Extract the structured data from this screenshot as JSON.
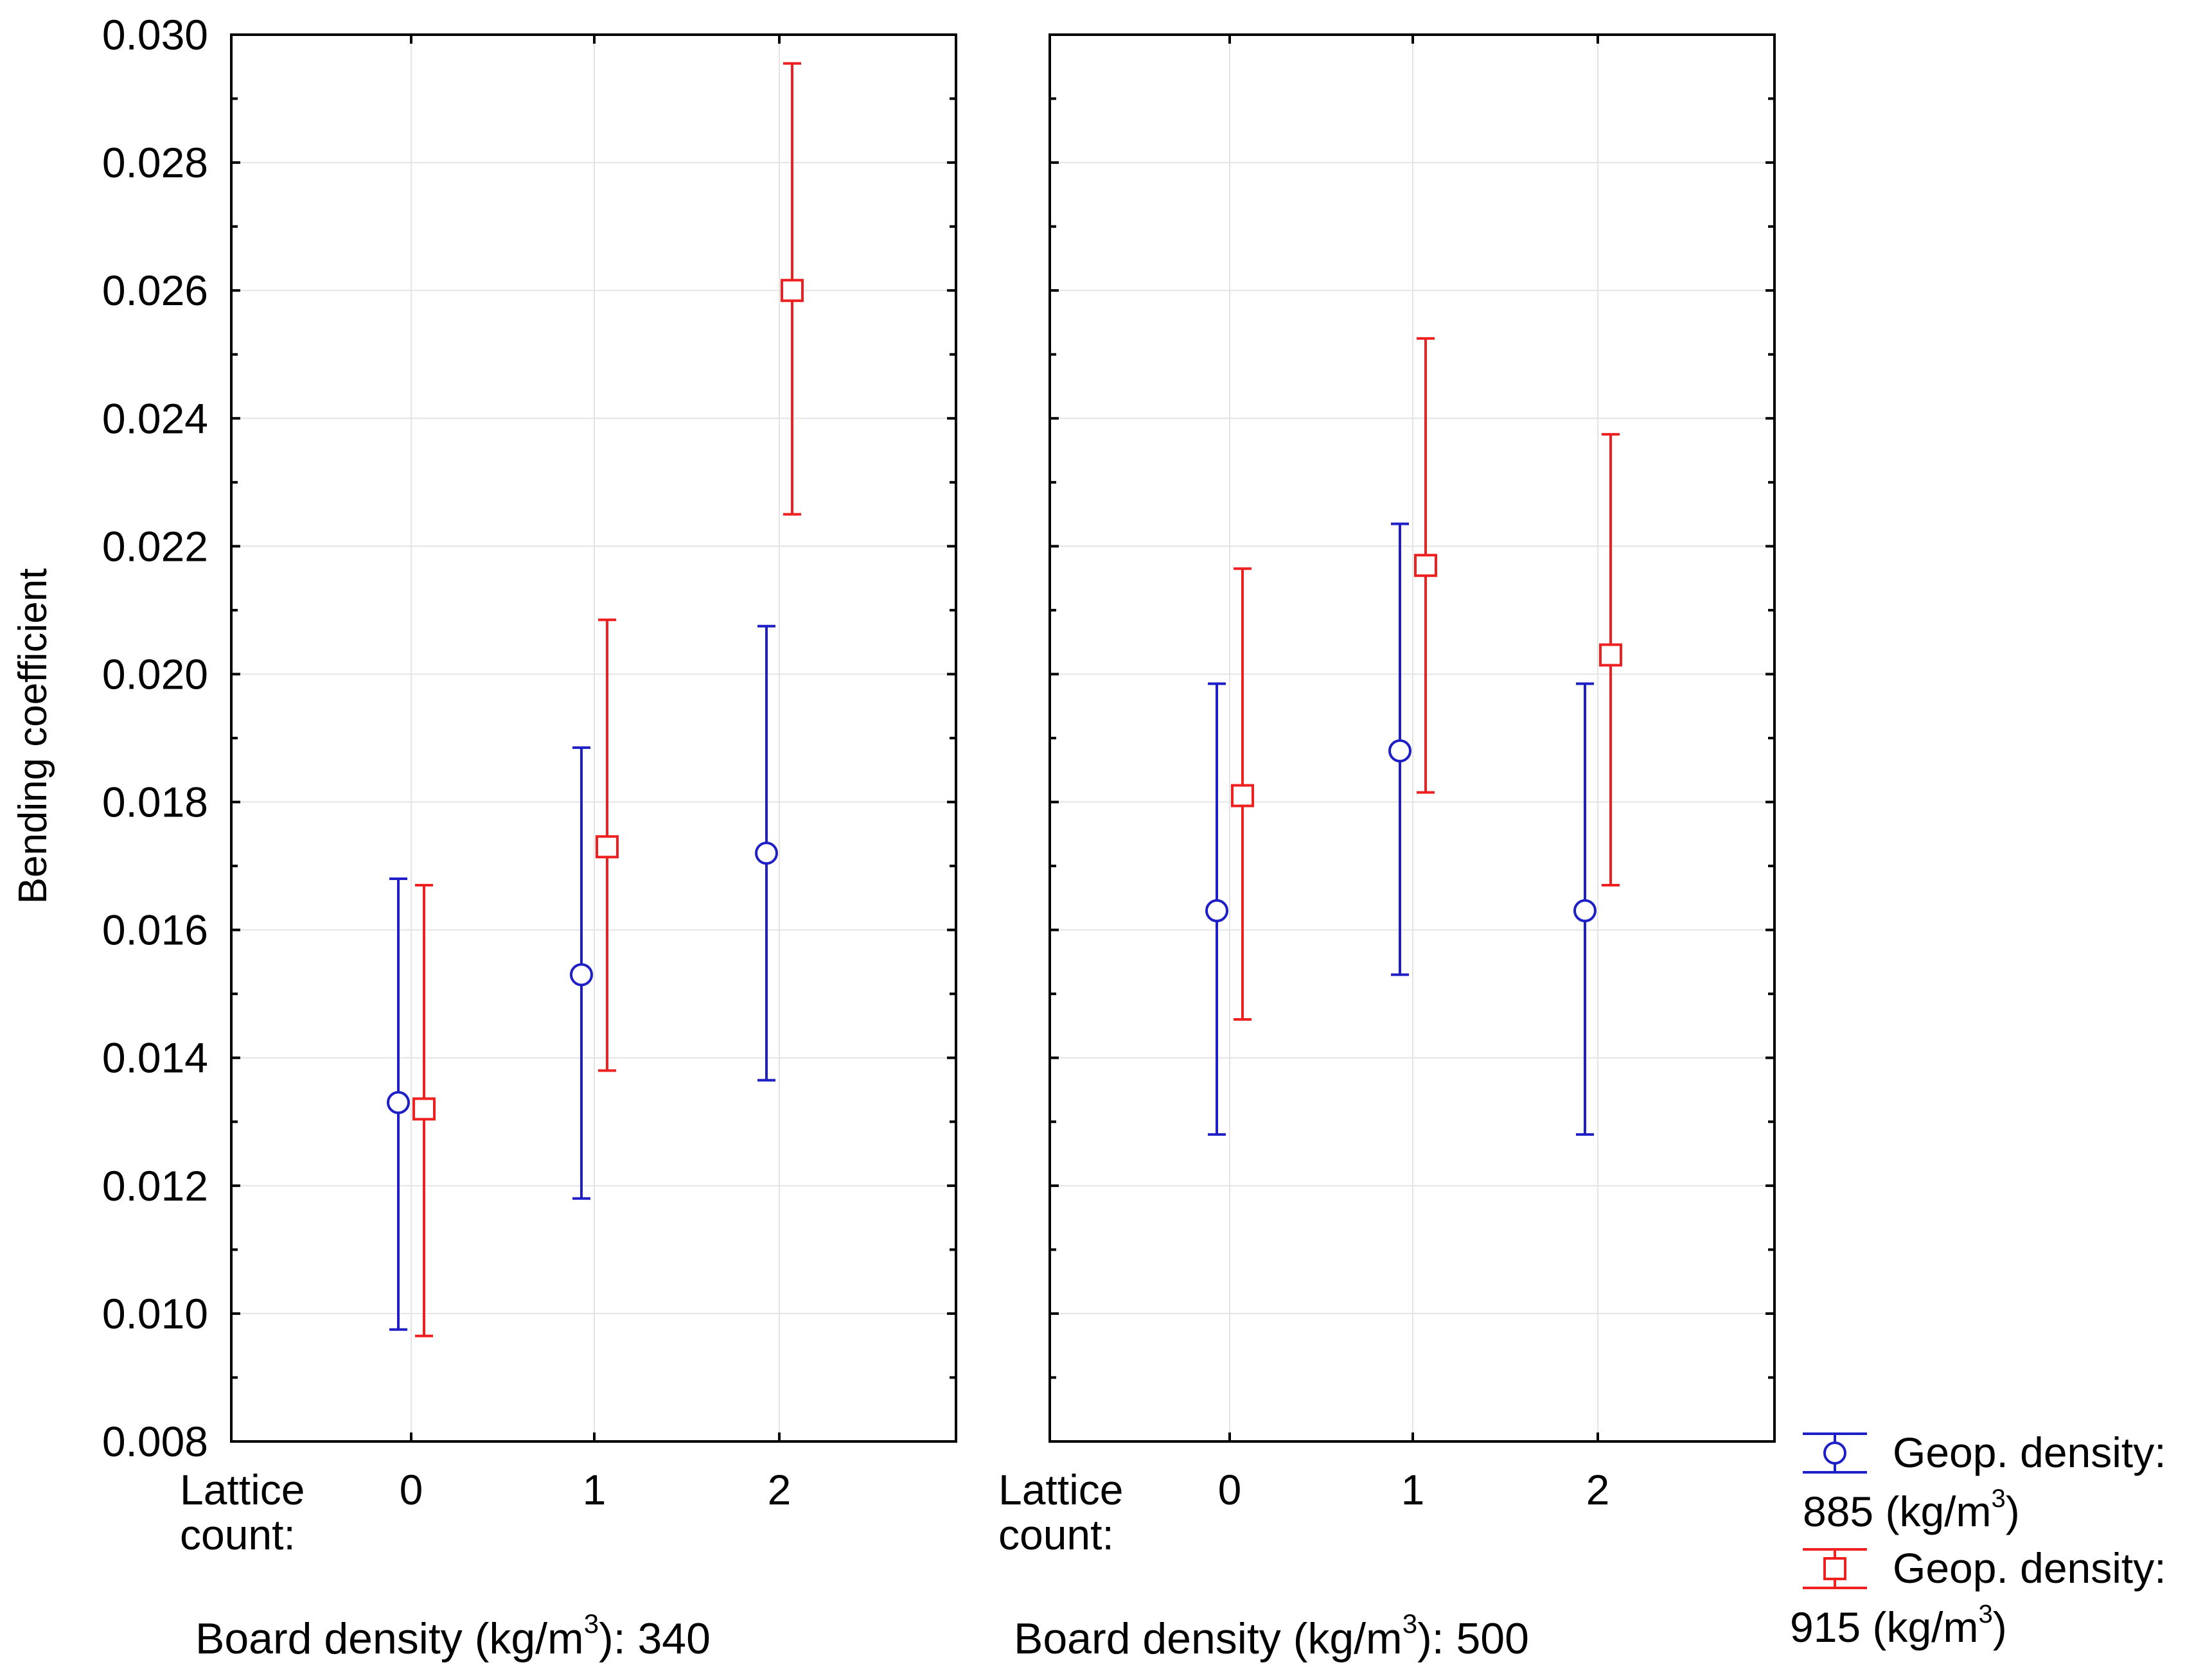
{
  "chart_data": {
    "type": "scatter",
    "subtype": "means-with-error-bars",
    "ylabel": "Bending coefficient",
    "ylim": [
      0.008,
      0.03
    ],
    "yticks": [
      "0.008",
      "0.010",
      "0.012",
      "0.014",
      "0.016",
      "0.018",
      "0.020",
      "0.022",
      "0.024",
      "0.026",
      "0.028",
      "0.030"
    ],
    "grid": true,
    "x_factor_label": [
      "Lattice",
      "count:"
    ],
    "categories": [
      "0",
      "1",
      "2"
    ],
    "panels": [
      {
        "caption_prefix": "Board density (kg/m",
        "caption_sup": "3",
        "caption_suffix": "): 340",
        "series": [
          {
            "name": "885",
            "color": "#1f1fc8",
            "marker": "circle",
            "mean": [
              0.0133,
              0.0153,
              0.0172
            ],
            "lower": [
              0.00975,
              0.0118,
              0.01365
            ],
            "upper": [
              0.0168,
              0.01885,
              0.02075
            ]
          },
          {
            "name": "915",
            "color": "#ee2020",
            "marker": "square",
            "mean": [
              0.0132,
              0.0173,
              0.026
            ],
            "lower": [
              0.00965,
              0.0138,
              0.0225
            ],
            "upper": [
              0.0167,
              0.02085,
              0.02955
            ]
          }
        ]
      },
      {
        "caption_prefix": "Board density (kg/m",
        "caption_sup": "3",
        "caption_suffix": "): 500",
        "series": [
          {
            "name": "885",
            "color": "#1f1fc8",
            "marker": "circle",
            "mean": [
              0.0163,
              0.0188,
              0.0163
            ],
            "lower": [
              0.0128,
              0.0153,
              0.0128
            ],
            "upper": [
              0.01985,
              0.02235,
              0.01985
            ]
          },
          {
            "name": "915",
            "color": "#ee2020",
            "marker": "square",
            "mean": [
              0.0181,
              0.0217,
              0.0203
            ],
            "lower": [
              0.0146,
              0.01815,
              0.0167
            ],
            "upper": [
              0.02165,
              0.02525,
              0.02375
            ]
          }
        ]
      }
    ],
    "legend": {
      "position": "bottom-right",
      "entries": [
        {
          "line1": "Geop. density:",
          "value": "885",
          "unit_prefix": " (kg/m",
          "unit_sup": "3",
          "unit_suffix": ")",
          "color": "#1f1fc8",
          "marker": "circle"
        },
        {
          "line1": "Geop. density:",
          "value": "915",
          "unit_prefix": " (kg/m",
          "unit_sup": "3",
          "unit_suffix": ")",
          "color": "#ee2020",
          "marker": "square"
        }
      ]
    }
  }
}
